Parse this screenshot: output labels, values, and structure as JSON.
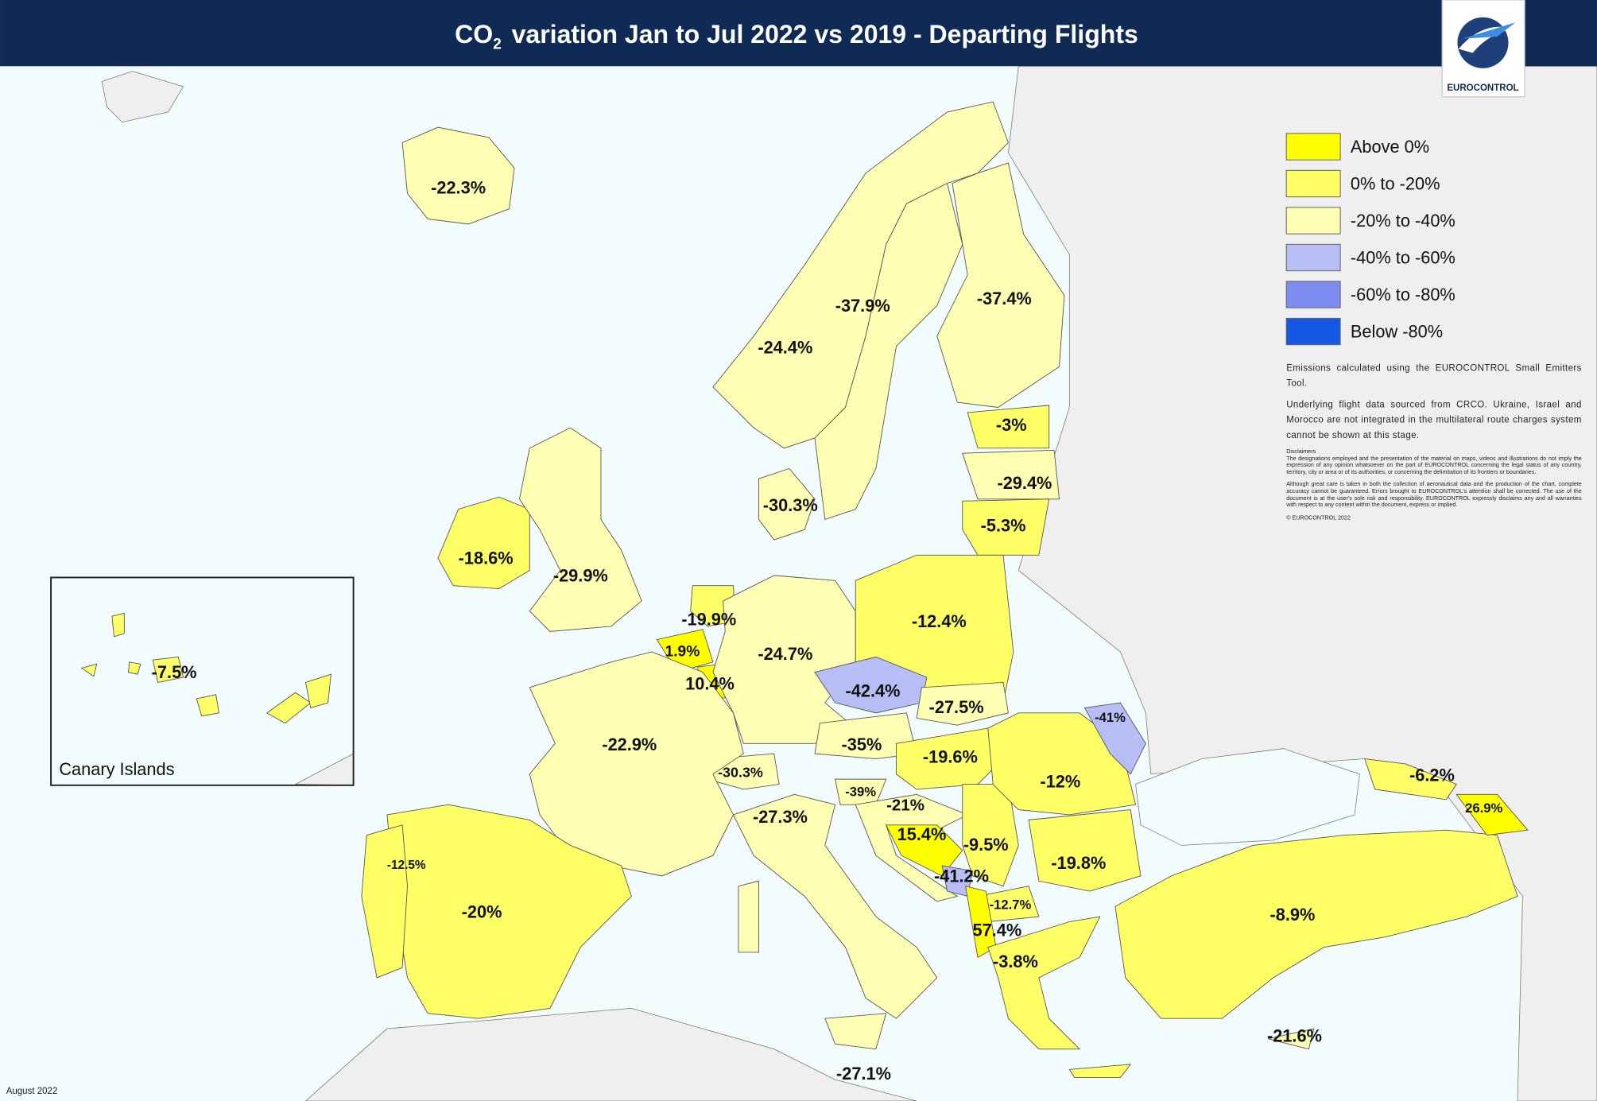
{
  "header": {
    "title": {
      "prefix": "CO",
      "subscript": "2",
      "text": "variation Jan to Jul 2022 vs 2019 - Departing Flights"
    },
    "logo_text": "EUROCONTROL"
  },
  "legend": {
    "items": [
      {
        "label": "Above 0%",
        "color": "#ffff00"
      },
      {
        "label": "0% to -20%",
        "color": "#ffff66"
      },
      {
        "label": "-20% to -40%",
        "color": "#ffffb3"
      },
      {
        "label": "-40% to -60%",
        "color": "#b7bdf5"
      },
      {
        "label": "-60% to -80%",
        "color": "#7b8eef"
      },
      {
        "label": "Below -80%",
        "color": "#1558e6"
      }
    ]
  },
  "notes": {
    "tool": "Emissions calculated using the EUROCONTROL Small Emitters Tool.",
    "source": "Underlying flight data sourced from CRCO. Ukraine, Israel and Morocco are not integrated in the multilateral route charges system cannot be shown at this stage.",
    "disclaimer_title": "Disclaimers",
    "disclaimer_1": "The designations employed and the presentation of the material on maps, videos and illustrations do not imply the expression of any opinion whatsoever on the part of EUROCONTROL concerning the legal status of any country, territory, city or area or of its authorities, or concerning the delimitation of its frontiers or boundaries.",
    "disclaimer_2": "Although great care is taken in both the collection of aeronautical data and the production of the chart, complete accuracy cannot be guaranteed. Errors brought to EUROCONTROL's attention shall be corrected. The use of the document is at the user's sole risk and responsibility. EUROCONTROL expressly disclaims any and all warranties with respect to any content within the document, express or implied.",
    "copyright": "© EUROCONTROL 2022"
  },
  "map": {
    "inset_label": "Canary Islands",
    "date": "August 2022",
    "labels": [
      "-22.3%",
      "-37.9%",
      "-37.4%",
      "-24.4%",
      "-3%",
      "-29.4%",
      "-30.3%",
      "-5.3%",
      "-18.6%",
      "-29.9%",
      "-19.9%",
      "-12.4%",
      "1.9%",
      "-24.7%",
      "-7.5%",
      "10.4%",
      "-42.4%",
      "-27.5%",
      "-41%",
      "-22.9%",
      "-35%",
      "-19.6%",
      "-30.3%",
      "-12%",
      "-6.2%",
      "-39%",
      "-21%",
      "-27.3%",
      "26.9%",
      "15.4%",
      "-9.5%",
      "-12.5%",
      "-19.8%",
      "-41.2%",
      "-12.7%",
      "-20%",
      "-8.9%",
      "57.4%",
      "-3.8%",
      "-21.6%",
      "-27.1%"
    ]
  }
}
